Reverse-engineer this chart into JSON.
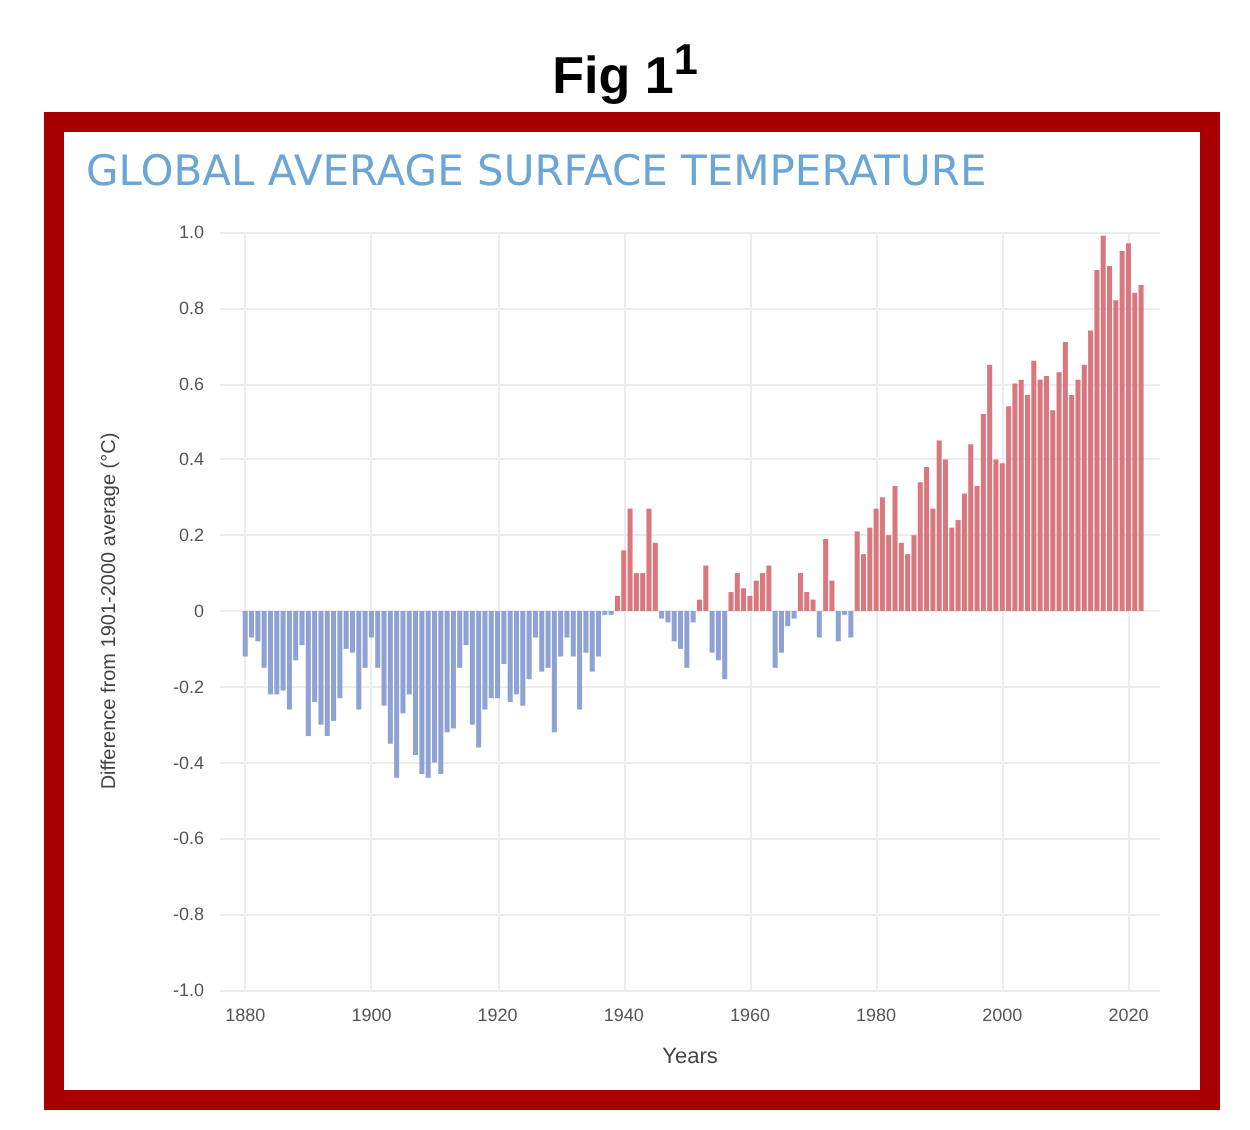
{
  "chart_data": {
    "type": "bar",
    "title": "Fig 1$^{1}$",
    "subtitle": "GLOBAL AVERAGE SURFACE TEMPERATURE",
    "xlabel": "Years",
    "ylabel": "Difference from 1901-2000 average (°C)",
    "x": [
      1880,
      1881,
      1882,
      1883,
      1884,
      1885,
      1886,
      1887,
      1888,
      1889,
      1890,
      1891,
      1892,
      1893,
      1894,
      1895,
      1896,
      1897,
      1898,
      1899,
      1900,
      1901,
      1902,
      1903,
      1904,
      1905,
      1906,
      1907,
      1908,
      1909,
      1910,
      1911,
      1912,
      1913,
      1914,
      1915,
      1916,
      1917,
      1918,
      1919,
      1920,
      1921,
      1922,
      1923,
      1924,
      1925,
      1926,
      1927,
      1928,
      1929,
      1930,
      1931,
      1932,
      1933,
      1934,
      1935,
      1936,
      1937,
      1938,
      1939,
      1940,
      1941,
      1942,
      1943,
      1944,
      1945,
      1946,
      1947,
      1948,
      1949,
      1950,
      1951,
      1952,
      1953,
      1954,
      1955,
      1956,
      1957,
      1958,
      1959,
      1960,
      1961,
      1962,
      1963,
      1964,
      1965,
      1966,
      1967,
      1968,
      1969,
      1970,
      1971,
      1972,
      1973,
      1974,
      1975,
      1976,
      1977,
      1978,
      1979,
      1980,
      1981,
      1982,
      1983,
      1984,
      1985,
      1986,
      1987,
      1988,
      1989,
      1990,
      1991,
      1992,
      1993,
      1994,
      1995,
      1996,
      1997,
      1998,
      1999,
      2000,
      2001,
      2002,
      2003,
      2004,
      2005,
      2006,
      2007,
      2008,
      2009,
      2010,
      2011,
      2012,
      2013,
      2014,
      2015,
      2016,
      2017,
      2018,
      2019,
      2020,
      2021,
      2022
    ],
    "values": [
      -0.12,
      -0.07,
      -0.08,
      -0.15,
      -0.22,
      -0.22,
      -0.21,
      -0.26,
      -0.13,
      -0.09,
      -0.33,
      -0.24,
      -0.3,
      -0.33,
      -0.29,
      -0.23,
      -0.1,
      -0.11,
      -0.26,
      -0.15,
      -0.07,
      -0.15,
      -0.25,
      -0.35,
      -0.44,
      -0.27,
      -0.22,
      -0.38,
      -0.43,
      -0.44,
      -0.4,
      -0.43,
      -0.32,
      -0.31,
      -0.15,
      -0.09,
      -0.3,
      -0.36,
      -0.26,
      -0.23,
      -0.23,
      -0.14,
      -0.24,
      -0.22,
      -0.25,
      -0.18,
      -0.07,
      -0.16,
      -0.15,
      -0.32,
      -0.12,
      -0.07,
      -0.12,
      -0.26,
      -0.11,
      -0.16,
      -0.12,
      -0.01,
      -0.01,
      0.04,
      0.16,
      0.27,
      0.1,
      0.1,
      0.27,
      0.18,
      -0.02,
      -0.03,
      -0.08,
      -0.1,
      -0.15,
      -0.03,
      0.03,
      0.12,
      -0.11,
      -0.13,
      -0.18,
      0.05,
      0.1,
      0.06,
      0.04,
      0.08,
      0.1,
      0.12,
      -0.15,
      -0.11,
      -0.04,
      -0.02,
      0.1,
      0.05,
      0.03,
      -0.07,
      0.19,
      0.08,
      -0.08,
      -0.01,
      -0.07,
      0.21,
      0.15,
      0.22,
      0.27,
      0.3,
      0.2,
      0.33,
      0.18,
      0.15,
      0.2,
      0.34,
      0.38,
      0.27,
      0.45,
      0.4,
      0.22,
      0.24,
      0.31,
      0.44,
      0.33,
      0.52,
      0.65,
      0.4,
      0.39,
      0.54,
      0.6,
      0.61,
      0.57,
      0.66,
      0.61,
      0.62,
      0.53,
      0.63,
      0.71,
      0.57,
      0.61,
      0.65,
      0.74,
      0.9,
      0.99,
      0.91,
      0.82,
      0.95,
      0.97,
      0.84,
      0.86
    ],
    "colors": [
      "#8fa2d4",
      "#8fa2d4",
      "#8fa2d4",
      "#8fa2d4",
      "#8fa2d4",
      "#8fa2d4",
      "#8fa2d4",
      "#8fa2d4",
      "#8fa2d4",
      "#8fa2d4",
      "#8fa2d4",
      "#8fa2d4",
      "#8fa2d4",
      "#8fa2d4",
      "#8fa2d4",
      "#8fa2d4",
      "#8fa2d4",
      "#8fa2d4",
      "#8fa2d4",
      "#8fa2d4",
      "#8fa2d4",
      "#8fa2d4",
      "#8fa2d4",
      "#8fa2d4",
      "#8fa2d4",
      "#8fa2d4",
      "#8fa2d4",
      "#8fa2d4",
      "#8fa2d4",
      "#8fa2d4",
      "#8fa2d4",
      "#8fa2d4",
      "#8fa2d4",
      "#8fa2d4",
      "#8fa2d4",
      "#8fa2d4",
      "#8fa2d4",
      "#8fa2d4",
      "#8fa2d4",
      "#8fa2d4",
      "#8fa2d4",
      "#8fa2d4",
      "#8fa2d4",
      "#8fa2d4",
      "#8fa2d4",
      "#8fa2d4",
      "#8fa2d4",
      "#8fa2d4",
      "#8fa2d4",
      "#8fa2d4",
      "#8fa2d4",
      "#8fa2d4",
      "#8fa2d4",
      "#8fa2d4",
      "#8fa2d4",
      "#8fa2d4",
      "#8fa2d4",
      "#8fa2d4",
      "#8fa2d4",
      "#d9777f",
      "#d9777f",
      "#d9777f",
      "#d9777f",
      "#d9777f",
      "#d9777f",
      "#d9777f",
      "#8fa2d4",
      "#8fa2d4",
      "#8fa2d4",
      "#8fa2d4",
      "#8fa2d4",
      "#8fa2d4",
      "#d9777f",
      "#d9777f",
      "#8fa2d4",
      "#8fa2d4",
      "#8fa2d4",
      "#d9777f",
      "#d9777f",
      "#d9777f",
      "#d9777f",
      "#d9777f",
      "#d9777f",
      "#d9777f",
      "#8fa2d4",
      "#8fa2d4",
      "#8fa2d4",
      "#8fa2d4",
      "#d9777f",
      "#d9777f",
      "#d9777f",
      "#8fa2d4",
      "#d9777f",
      "#d9777f",
      "#8fa2d4",
      "#8fa2d4",
      "#8fa2d4",
      "#d9777f",
      "#d9777f",
      "#d9777f",
      "#d9777f",
      "#d9777f",
      "#d9777f",
      "#d9777f",
      "#d9777f",
      "#d9777f",
      "#d9777f",
      "#d9777f",
      "#d9777f",
      "#d9777f",
      "#d9777f",
      "#d9777f",
      "#d9777f",
      "#d9777f",
      "#d9777f",
      "#d9777f",
      "#d9777f",
      "#d9777f",
      "#d9777f",
      "#d9777f",
      "#d9777f",
      "#d9777f",
      "#d9777f",
      "#d9777f",
      "#d9777f",
      "#d9777f",
      "#d9777f",
      "#d9777f",
      "#d9777f",
      "#d9777f",
      "#d9777f",
      "#d9777f",
      "#d9777f",
      "#d9777f",
      "#d9777f",
      "#d9777f",
      "#d9777f",
      "#d9777f",
      "#d9777f",
      "#d9777f",
      "#d9777f",
      "#d9777f",
      "#d9777f"
    ],
    "xlim": [
      1876,
      2025
    ],
    "xticks": [
      1880,
      1900,
      1920,
      1940,
      1960,
      1980,
      2000,
      2020
    ],
    "ylim": [
      -1,
      1
    ],
    "yticks": [
      {
        "value": -1,
        "label": "-1.0"
      },
      -0.8,
      -0.6,
      -0.4,
      -0.2,
      0,
      0.2,
      0.4,
      0.6,
      0.8,
      {
        "value": 1,
        "label": "1.0"
      }
    ],
    "grid": true
  }
}
